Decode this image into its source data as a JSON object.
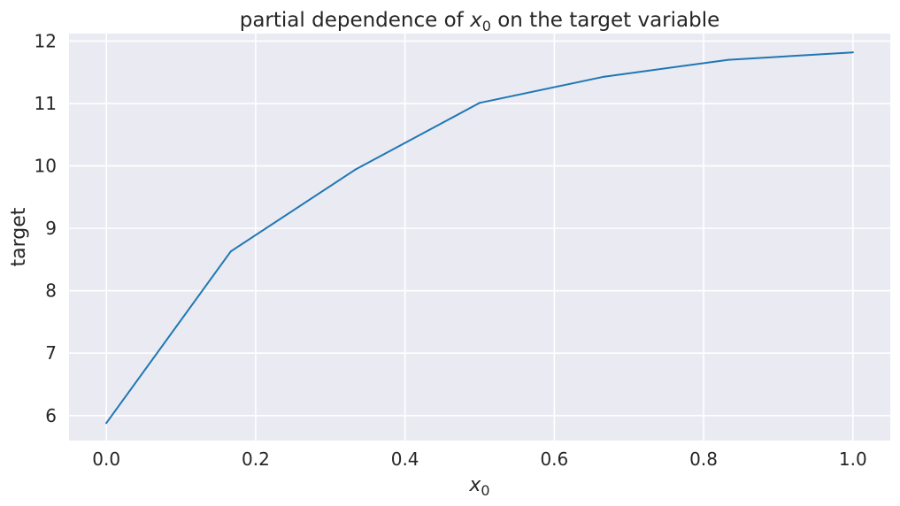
{
  "chart_data": {
    "type": "line",
    "title": {
      "prefix": "partial dependence of ",
      "var": "x",
      "sub": "0",
      "suffix": " on the target variable"
    },
    "xlabel": {
      "var": "x",
      "sub": "0"
    },
    "ylabel": "target",
    "xlim": [
      -0.05,
      1.05
    ],
    "ylim": [
      5.6,
      12.12
    ],
    "xticks": [
      "0.0",
      "0.2",
      "0.4",
      "0.6",
      "0.8",
      "1.0"
    ],
    "yticks": [
      "6",
      "7",
      "8",
      "9",
      "10",
      "11",
      "12"
    ],
    "grid": true,
    "series": [
      {
        "color": "#1f77b4",
        "x": [
          0.0,
          0.1667,
          0.3333,
          0.5,
          0.6667,
          0.8333,
          1.0
        ],
        "y": [
          5.88,
          8.63,
          9.94,
          11.01,
          11.43,
          11.7,
          11.82
        ]
      }
    ]
  },
  "style": {
    "plot_bg": "#eaeaf2",
    "grid_color": "#ffffff",
    "text_color": "#262626"
  }
}
